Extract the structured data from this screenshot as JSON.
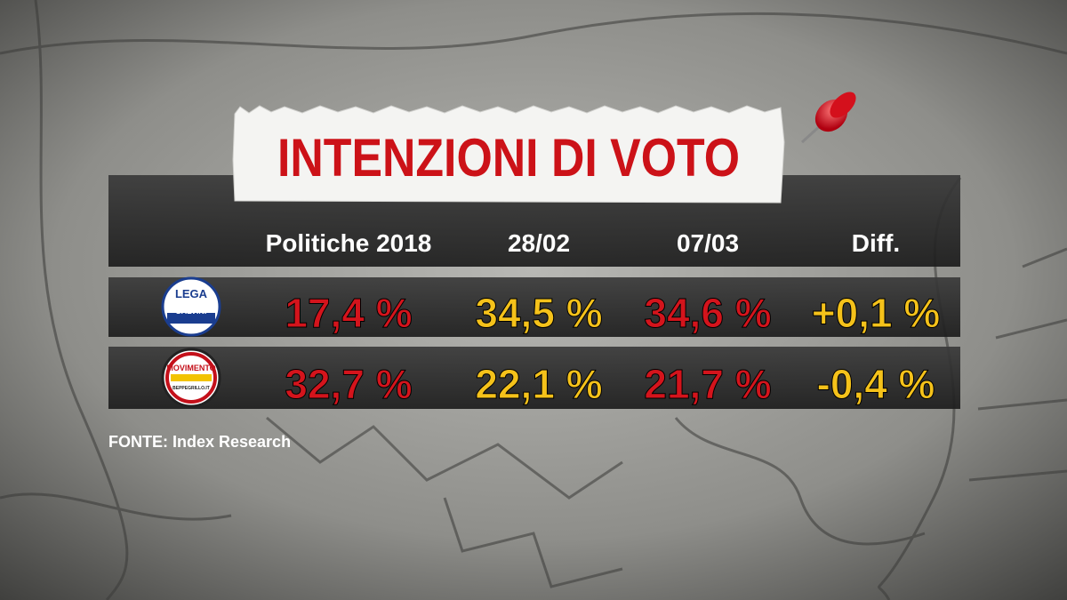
{
  "header": {
    "title": "INTENZIONI DI VOTO"
  },
  "table": {
    "columns": [
      "Politiche 2018",
      "28/02",
      "07/03",
      "Diff."
    ],
    "rows": [
      {
        "logo": [
          "LEGA",
          "SALVINI",
          "PREMIER"
        ],
        "cells": [
          "17,4 %",
          "34,5 %",
          "34,6 %",
          "+0,1 %"
        ]
      },
      {
        "logo": [
          "MOVIMENTO",
          "BEPPEGRILLO.IT"
        ],
        "cells": [
          "32,7 %",
          "22,1 %",
          "21,7 %",
          "-0,4 %"
        ]
      }
    ]
  },
  "source": "FONTE:  Index Research"
}
